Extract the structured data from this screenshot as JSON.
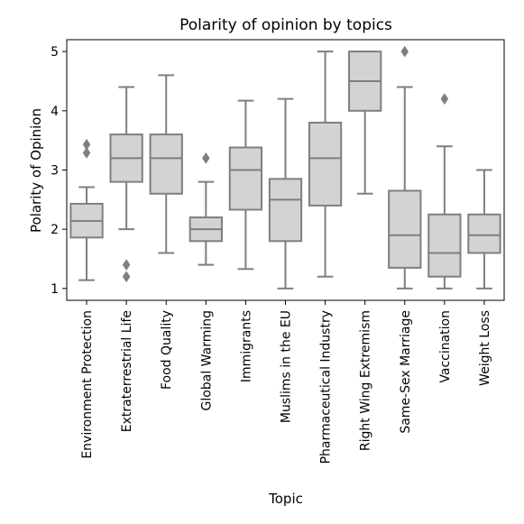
{
  "chart_data": {
    "type": "box",
    "title": "Polarity of opinion by topics",
    "xlabel": "Topic",
    "ylabel": "Polarity of Opinion",
    "ylim": [
      0.8,
      5.2
    ],
    "yticks": [
      1,
      2,
      3,
      4,
      5
    ],
    "grid": false,
    "colors": {
      "box_fill": "#d3d3d3",
      "line": "#7f7f7f"
    },
    "categories": [
      "Environment Protection",
      "Extraterrestrial Life",
      "Food Quality",
      "Global Warming",
      "Immigrants",
      "Muslims in the EU",
      "Pharmaceutical Industry",
      "Right Wing Extremism",
      "Same-Sex Marriage",
      "Vaccination",
      "Weight Loss"
    ],
    "boxes": [
      {
        "whisker_low": 1.14,
        "q1": 1.86,
        "median": 2.14,
        "q3": 2.43,
        "whisker_high": 2.71,
        "outliers": [
          3.29,
          3.43
        ]
      },
      {
        "whisker_low": 2.0,
        "q1": 2.8,
        "median": 3.2,
        "q3": 3.6,
        "whisker_high": 4.4,
        "outliers": [
          1.2,
          1.4
        ]
      },
      {
        "whisker_low": 1.6,
        "q1": 2.6,
        "median": 3.2,
        "q3": 3.6,
        "whisker_high": 4.6,
        "outliers": []
      },
      {
        "whisker_low": 1.4,
        "q1": 1.8,
        "median": 2.0,
        "q3": 2.2,
        "whisker_high": 2.8,
        "outliers": [
          3.2
        ]
      },
      {
        "whisker_low": 1.33,
        "q1": 2.33,
        "median": 3.0,
        "q3": 3.38,
        "whisker_high": 4.17,
        "outliers": []
      },
      {
        "whisker_low": 1.0,
        "q1": 1.8,
        "median": 2.5,
        "q3": 2.85,
        "whisker_high": 4.2,
        "outliers": []
      },
      {
        "whisker_low": 1.2,
        "q1": 2.4,
        "median": 3.2,
        "q3": 3.8,
        "whisker_high": 5.0,
        "outliers": []
      },
      {
        "whisker_low": 2.6,
        "q1": 4.0,
        "median": 4.5,
        "q3": 5.0,
        "whisker_high": 5.0,
        "outliers": []
      },
      {
        "whisker_low": 1.0,
        "q1": 1.35,
        "median": 1.9,
        "q3": 2.65,
        "whisker_high": 4.4,
        "outliers": [
          5.0
        ]
      },
      {
        "whisker_low": 1.0,
        "q1": 1.2,
        "median": 1.6,
        "q3": 2.25,
        "whisker_high": 3.4,
        "outliers": [
          4.2
        ]
      },
      {
        "whisker_low": 1.0,
        "q1": 1.6,
        "median": 1.9,
        "q3": 2.25,
        "whisker_high": 3.0,
        "outliers": []
      }
    ]
  }
}
